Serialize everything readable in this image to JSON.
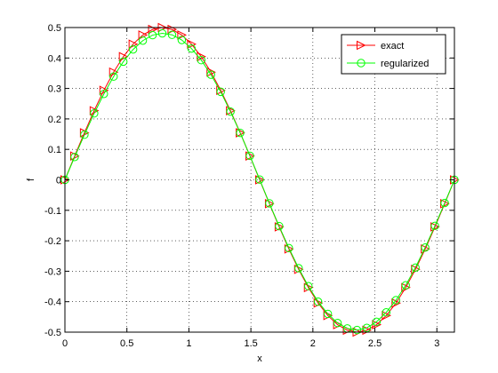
{
  "chart_data": {
    "type": "line",
    "title": "",
    "xlabel": "x",
    "ylabel": "f",
    "xlim": [
      0,
      3.1416
    ],
    "ylim": [
      -0.5,
      0.5
    ],
    "x_ticks": [
      0,
      0.5,
      1,
      1.5,
      2,
      2.5,
      3
    ],
    "x_tick_labels": [
      "0",
      "0.5",
      "1",
      "1.5",
      "2",
      "2.5",
      "3"
    ],
    "y_ticks": [
      -0.5,
      -0.4,
      -0.3,
      -0.2,
      -0.1,
      0,
      0.1,
      0.2,
      0.3,
      0.4,
      0.5
    ],
    "y_tick_labels": [
      "-0.5",
      "-0.4",
      "-0.3",
      "-0.2",
      "-0.1",
      "0",
      "0.1",
      "0.2",
      "0.3",
      "0.4",
      "0.5"
    ],
    "grid": true,
    "legend_position": "top-right",
    "x": [
      0.0,
      0.0785,
      0.1571,
      0.2356,
      0.3142,
      0.3927,
      0.4712,
      0.5498,
      0.6283,
      0.7069,
      0.7854,
      0.864,
      0.9425,
      1.021,
      1.0996,
      1.1781,
      1.2566,
      1.3352,
      1.4137,
      1.4923,
      1.5708,
      1.6493,
      1.7279,
      1.8064,
      1.885,
      1.9635,
      2.042,
      2.1206,
      2.1991,
      2.2777,
      2.3562,
      2.4347,
      2.5133,
      2.5918,
      2.6704,
      2.7489,
      2.8274,
      2.906,
      2.9845,
      3.0631,
      3.1416
    ],
    "series": [
      {
        "name": "exact",
        "color": "#ff0000",
        "marker": "triangle-right",
        "values": [
          0.0,
          0.0782,
          0.1545,
          0.227,
          0.2939,
          0.3536,
          0.4045,
          0.4455,
          0.4755,
          0.4938,
          0.5,
          0.4938,
          0.4755,
          0.4455,
          0.4045,
          0.3536,
          0.2939,
          0.227,
          0.1545,
          0.0782,
          0.0,
          -0.0782,
          -0.1545,
          -0.227,
          -0.2939,
          -0.3536,
          -0.4045,
          -0.4455,
          -0.4755,
          -0.4938,
          -0.5,
          -0.4938,
          -0.4755,
          -0.4455,
          -0.4045,
          -0.3536,
          -0.2939,
          -0.227,
          -0.1545,
          -0.0782,
          0.0
        ]
      },
      {
        "name": "regularized",
        "color": "#00ff00",
        "marker": "circle",
        "values": [
          0.0,
          0.075,
          0.148,
          0.218,
          0.282,
          0.339,
          0.388,
          0.428,
          0.457,
          0.475,
          0.481,
          0.476,
          0.459,
          0.431,
          0.393,
          0.345,
          0.289,
          0.224,
          0.154,
          0.079,
          0.001,
          -0.077,
          -0.152,
          -0.224,
          -0.29,
          -0.349,
          -0.4,
          -0.44,
          -0.47,
          -0.488,
          -0.493,
          -0.486,
          -0.466,
          -0.435,
          -0.395,
          -0.346,
          -0.288,
          -0.222,
          -0.151,
          -0.076,
          0.0
        ]
      }
    ]
  }
}
